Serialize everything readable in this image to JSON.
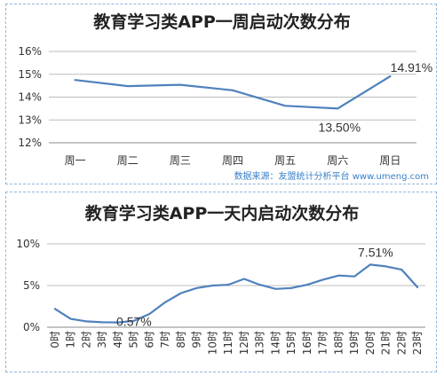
{
  "chart_data": [
    {
      "type": "line",
      "title": "教育学习类APP一周启动次数分布",
      "categories": [
        "周一",
        "周二",
        "周三",
        "周四",
        "周五",
        "周六",
        "周日"
      ],
      "series": [
        {
          "values": [
            14.75,
            14.48,
            14.54,
            14.3,
            13.62,
            13.5,
            14.91
          ],
          "color": "#4f81bd"
        }
      ],
      "ylim": [
        12,
        16
      ],
      "yticks": [
        "12%",
        "13%",
        "14%",
        "15%",
        "16%"
      ],
      "grid": true,
      "annotations": [
        {
          "index": 5,
          "label": "13.50%"
        },
        {
          "index": 6,
          "label": "14.91%"
        }
      ],
      "source": "数据来源：友盟统计分析平台 www.umeng.com"
    },
    {
      "type": "line",
      "title": "教育学习类APP一天内启动次数分布",
      "categories": [
        "0时",
        "1时",
        "2时",
        "3时",
        "4时",
        "5时",
        "6时",
        "7时",
        "8时",
        "9时",
        "10时",
        "11时",
        "12时",
        "13时",
        "14时",
        "15时",
        "16时",
        "17时",
        "18时",
        "19时",
        "20时",
        "21时",
        "22时",
        "23时"
      ],
      "series": [
        {
          "values": [
            2.2,
            1.0,
            0.7,
            0.6,
            0.57,
            0.75,
            1.6,
            3.0,
            4.1,
            4.7,
            5.0,
            5.1,
            5.8,
            5.1,
            4.6,
            4.7,
            5.1,
            5.7,
            6.2,
            6.1,
            7.51,
            7.3,
            6.9,
            4.8
          ],
          "color": "#4f81bd"
        }
      ],
      "ylim": [
        0,
        10
      ],
      "yticks": [
        "0%",
        "5%",
        "10%"
      ],
      "grid": true,
      "annotations": [
        {
          "index": 4,
          "label": "0.57%"
        },
        {
          "index": 20,
          "label": "7.51%"
        }
      ],
      "source": "数据来源：友盟统计分析平台 www.umeng.com"
    }
  ]
}
